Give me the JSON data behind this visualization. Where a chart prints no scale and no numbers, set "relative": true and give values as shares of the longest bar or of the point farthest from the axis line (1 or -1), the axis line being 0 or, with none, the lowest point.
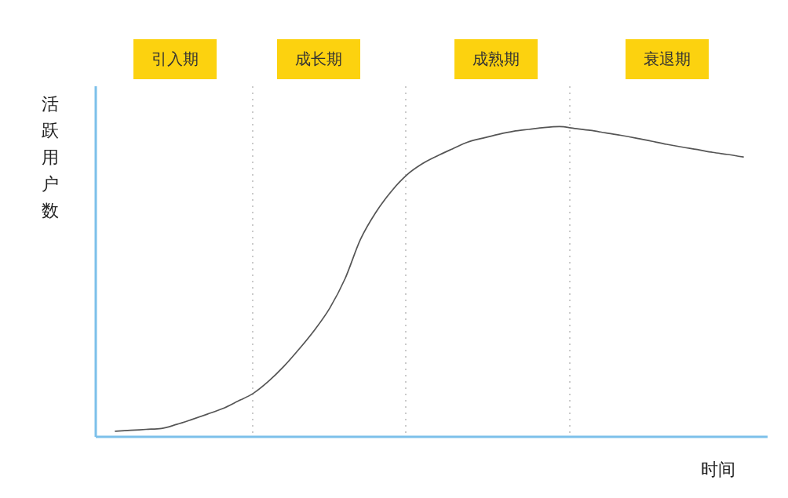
{
  "chart_data": {
    "type": "line",
    "xlabel": "时间",
    "ylabel": "活跃用户数",
    "relative": true,
    "grid": "x",
    "marker": "none",
    "line_style": "solid",
    "categories": [
      null,
      null,
      null,
      null,
      null,
      null,
      null,
      null,
      null,
      null,
      null,
      null,
      null,
      null,
      null,
      null,
      null,
      null,
      null,
      null,
      null,
      null,
      null,
      null,
      null,
      null,
      null,
      null,
      null,
      null,
      null,
      null,
      null,
      null,
      null,
      null,
      null,
      null,
      null,
      null,
      null,
      null
    ],
    "series": [
      {
        "color": "#555555",
        "values": [
          0.018,
          0.021,
          0.024,
          0.027,
          0.04,
          0.056,
          0.073,
          0.091,
          0.115,
          0.14,
          0.179,
          0.227,
          0.283,
          0.344,
          0.415,
          0.51,
          0.636,
          0.723,
          0.79,
          0.843,
          0.879,
          0.905,
          0.928,
          0.95,
          0.963,
          0.975,
          0.985,
          0.991,
          0.997,
          1.0,
          0.994,
          0.988,
          0.98,
          0.972,
          0.963,
          0.953,
          0.943,
          0.934,
          0.926,
          0.917,
          0.91,
          0.902
        ]
      }
    ],
    "annotations": [
      "引入期",
      "成长期",
      "成熟期",
      "衰退期"
    ]
  }
}
